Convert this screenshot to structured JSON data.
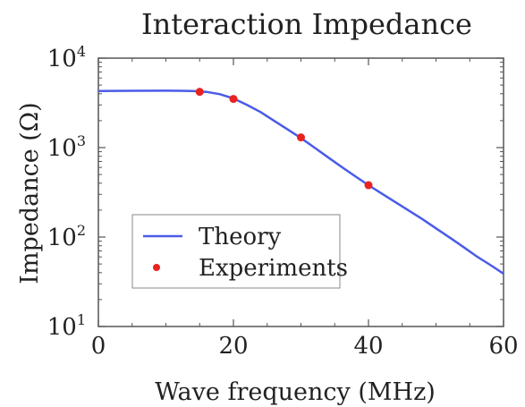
{
  "chart_data": {
    "type": "line",
    "title": "Interaction Impedance",
    "xlabel": "Wave frequency (MHz)",
    "ylabel": "Impedance (Ω)",
    "xlim": [
      0,
      60
    ],
    "ylim": [
      10,
      10000
    ],
    "yscale": "log",
    "x_ticks": [
      "0",
      "20",
      "40",
      "60"
    ],
    "y_ticks": [
      {
        "base": "10",
        "exp": "1",
        "value": 10
      },
      {
        "base": "10",
        "exp": "2",
        "value": 100
      },
      {
        "base": "10",
        "exp": "3",
        "value": 1000
      },
      {
        "base": "10",
        "exp": "4",
        "value": 10000
      }
    ],
    "legend_position": "bottom-left",
    "series": [
      {
        "name": "Theory",
        "kind": "line",
        "color": "#4a5be8",
        "x": [
          0,
          5,
          10,
          12,
          14,
          16,
          18,
          20,
          22,
          24,
          26,
          28,
          30,
          32,
          34,
          36,
          38,
          40,
          42,
          44,
          46,
          48,
          50,
          52,
          54,
          56,
          58,
          60
        ],
        "y": [
          4300,
          4320,
          4330,
          4320,
          4290,
          4200,
          3950,
          3550,
          3000,
          2500,
          2000,
          1600,
          1280,
          1000,
          780,
          610,
          480,
          380,
          305,
          245,
          197,
          158,
          125,
          99,
          78,
          61,
          49,
          39
        ]
      },
      {
        "name": "Experiments",
        "kind": "scatter",
        "color": "#e8231f",
        "x": [
          15,
          20,
          30,
          40
        ],
        "y": [
          4200,
          3500,
          1300,
          380
        ]
      }
    ]
  }
}
